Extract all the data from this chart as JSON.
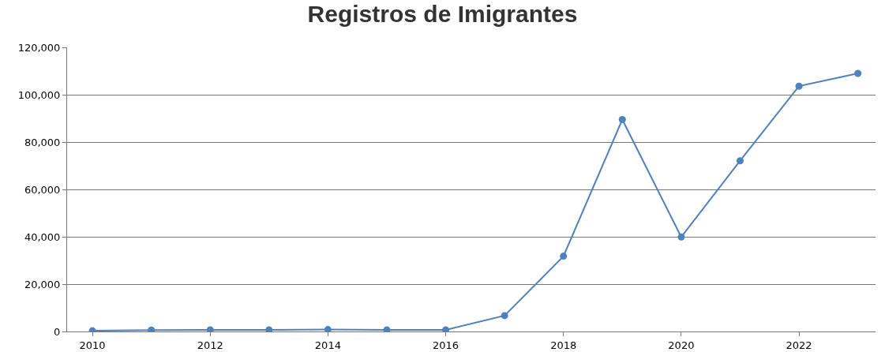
{
  "chart_data": {
    "type": "line",
    "title": "Registros de Imigrantes",
    "x": [
      2010,
      2011,
      2012,
      2013,
      2014,
      2015,
      2016,
      2017,
      2018,
      2019,
      2020,
      2021,
      2022,
      2023
    ],
    "series": [
      {
        "color": "#4f81bc",
        "values": [
          300,
          600,
          700,
          700,
          800,
          700,
          700,
          6700,
          31800,
          89500,
          39900,
          72100,
          103600,
          109000
        ]
      }
    ],
    "xlim": [
      2009.57,
      2023.3
    ],
    "xticks": [
      2010,
      2012,
      2014,
      2016,
      2018,
      2020,
      2022
    ],
    "ylim": [
      0,
      120000
    ],
    "yticks": [
      {
        "value": 0,
        "label": "0"
      },
      {
        "value": 20000,
        "label": "20,000"
      },
      {
        "value": 40000,
        "label": "40,000"
      },
      {
        "value": 60000,
        "label": "60,000"
      },
      {
        "value": 80000,
        "label": "80,000"
      },
      {
        "value": 100000,
        "label": "100,000"
      },
      {
        "value": 120000,
        "label": "120,000"
      }
    ],
    "grid": "y",
    "legend": false,
    "marker": "circle",
    "line_style": "solid"
  }
}
